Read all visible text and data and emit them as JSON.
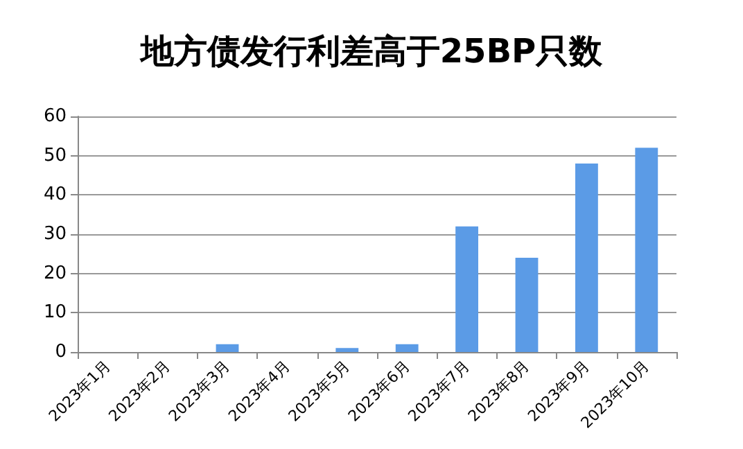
{
  "chart_data": {
    "type": "bar",
    "title": "地方债发行利差高于25BP只数",
    "categories": [
      "2023年1月",
      "2023年2月",
      "2023年3月",
      "2023年4月",
      "2023年5月",
      "2023年6月",
      "2023年7月",
      "2023年8月",
      "2023年9月",
      "2023年10月"
    ],
    "values": [
      0,
      0,
      2,
      0,
      1,
      2,
      32,
      24,
      48,
      52
    ],
    "color": "#5b9be6",
    "ylim": [
      0,
      60
    ],
    "yticks": [
      0,
      10,
      20,
      30,
      40,
      50,
      60
    ],
    "grid": "y"
  }
}
